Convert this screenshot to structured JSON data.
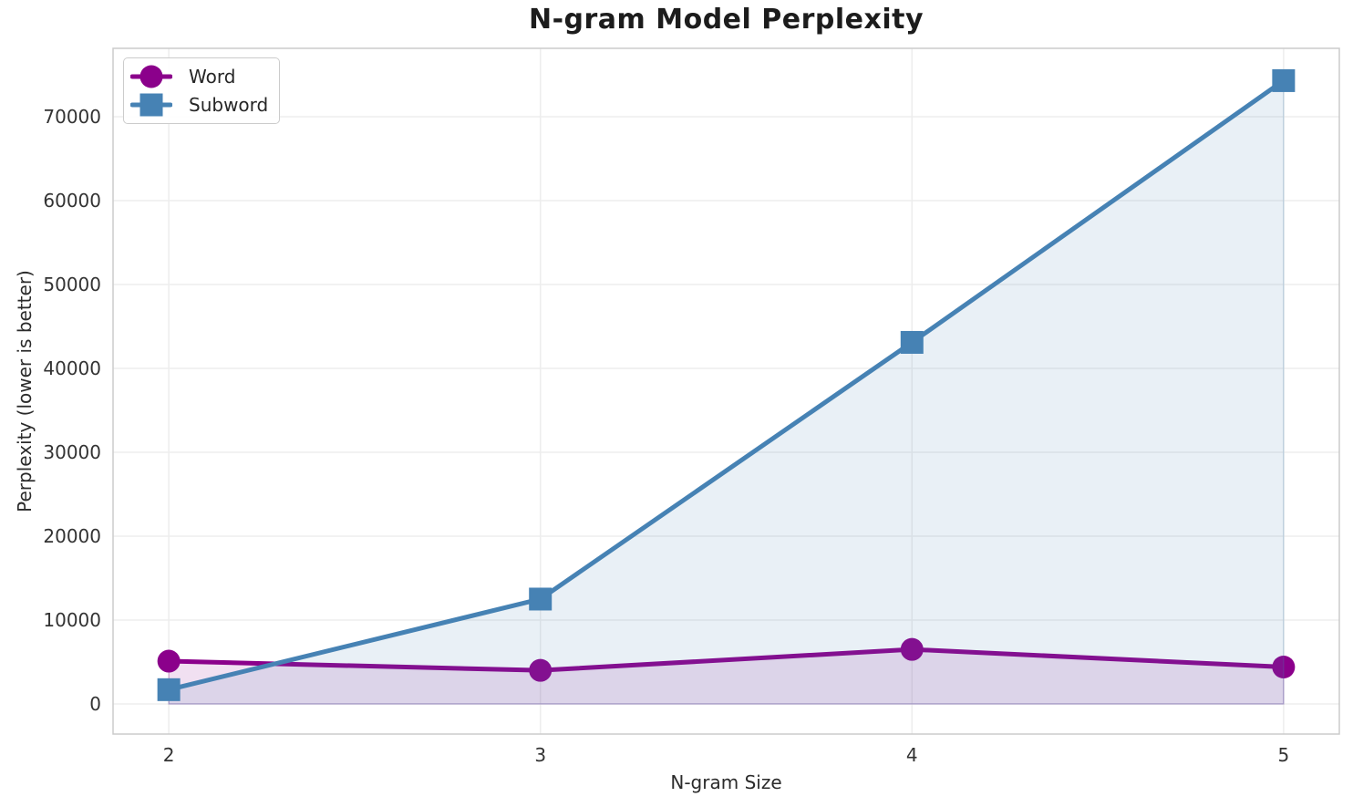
{
  "chart_data": {
    "type": "line",
    "title": "N-gram Model Perplexity",
    "xlabel": "N-gram Size",
    "ylabel": "Perplexity (lower is better)",
    "x": [
      2,
      3,
      4,
      5
    ],
    "xtick_labels": [
      "2",
      "3",
      "4",
      "5"
    ],
    "yticks": [
      0,
      10000,
      20000,
      30000,
      40000,
      50000,
      60000,
      70000
    ],
    "ytick_labels": [
      "0",
      "10000",
      "20000",
      "30000",
      "40000",
      "50000",
      "60000",
      "70000"
    ],
    "xlim": [
      1.85,
      5.15
    ],
    "ylim": [
      -3590,
      78150
    ],
    "grid": true,
    "legend_position": "upper-left",
    "series": [
      {
        "name": "Word",
        "marker": "circle",
        "color": "#8B008B",
        "fill_alpha": 0.12,
        "values": [
          5100,
          4000,
          6500,
          4400
        ]
      },
      {
        "name": "Subword",
        "marker": "square",
        "color": "#4682B4",
        "fill_alpha": 0.12,
        "values": [
          1700,
          12500,
          43100,
          74300
        ]
      }
    ],
    "colors": {
      "grid": "#ededed",
      "spine": "#cbcbcb",
      "tick_label": "#333333",
      "title": "#1c1c1c",
      "background": "#ffffff"
    }
  }
}
